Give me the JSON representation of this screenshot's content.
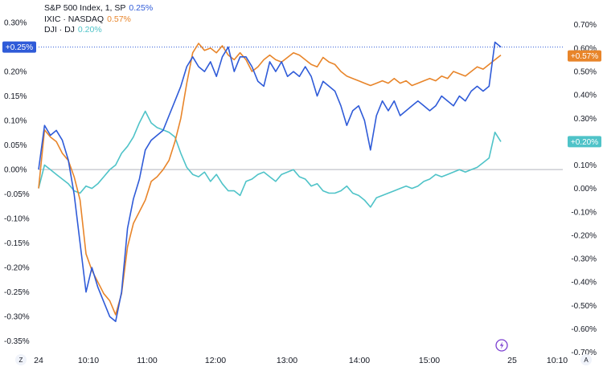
{
  "legend": [
    {
      "label": "S&P 500 Index, 1, SP",
      "value": "0.25%",
      "color": "#2f5bd8"
    },
    {
      "label": "IXIC · NASDAQ",
      "value": "0.57%",
      "color": "#e8852a"
    },
    {
      "label": "DJI · DJ",
      "value": "0.20%",
      "color": "#4fc3c8"
    }
  ],
  "badges": {
    "left": "+0.25%",
    "right_top": "+0.57%",
    "right_bottom": "+0.20%"
  },
  "axis_corners": {
    "left": "Z",
    "right": "A"
  },
  "colors": {
    "spx": "#2f5bd8",
    "ixic": "#e8852a",
    "dji": "#4fc3c8",
    "grid_zero": "#b2b5be",
    "tv_purple": "#7b3fd1"
  },
  "icons": {
    "lightning": "lightning-icon"
  },
  "chart_data": {
    "type": "line",
    "title": "",
    "x_ticks": [
      "24",
      "10:10",
      "11:00",
      "12:00",
      "13:00",
      "14:00",
      "15:00",
      "25",
      "10:10"
    ],
    "left_axis": {
      "ylim": [
        -0.375,
        0.31
      ],
      "ticks": [
        0.3,
        0.25,
        0.2,
        0.15,
        0.1,
        0.05,
        0.0,
        -0.05,
        -0.1,
        -0.15,
        -0.2,
        -0.25,
        -0.3,
        -0.35
      ],
      "tick_labels": [
        "0.30%",
        "0.25%",
        "0.20%",
        "0.15%",
        "0.10%",
        "0.05%",
        "0.00%",
        "-0.05%",
        "-0.10%",
        "-0.15%",
        "-0.20%",
        "-0.25%",
        "-0.30%",
        "-0.35%"
      ]
    },
    "right_axis": {
      "ylim": [
        -0.705,
        0.73
      ],
      "ticks": [
        0.7,
        0.6,
        0.5,
        0.4,
        0.3,
        0.2,
        0.1,
        0.0,
        -0.1,
        -0.2,
        -0.3,
        -0.4,
        -0.5,
        -0.6,
        -0.7
      ],
      "tick_labels": [
        "0.70%",
        "0.60%",
        "0.50%",
        "0.40%",
        "0.30%",
        "0.20%",
        "0.10%",
        "0.00%",
        "-0.10%",
        "-0.20%",
        "-0.30%",
        "-0.40%",
        "-0.50%",
        "-0.60%",
        "-0.70%"
      ]
    },
    "x_minutes": [
      0,
      5,
      10,
      15,
      20,
      25,
      30,
      35,
      40,
      45,
      50,
      55,
      60,
      65,
      70,
      75,
      80,
      85,
      90,
      95,
      100,
      105,
      110,
      115,
      120,
      125,
      130,
      135,
      140,
      145,
      150,
      155,
      160,
      165,
      170,
      175,
      180,
      185,
      190,
      195,
      200,
      205,
      210,
      215,
      220,
      225,
      230,
      235,
      240,
      245,
      250,
      255,
      260,
      265,
      270,
      275,
      280,
      285,
      290,
      295,
      300,
      305,
      310,
      315,
      320,
      325,
      330,
      335,
      340,
      345,
      350,
      355,
      360,
      365,
      370,
      375,
      380,
      385,
      390
    ],
    "series": [
      {
        "name": "S&P 500 Index, 1, SP",
        "axis": "left",
        "values": [
          0.0,
          0.09,
          0.07,
          0.08,
          0.06,
          0.02,
          -0.05,
          -0.15,
          -0.25,
          -0.2,
          -0.24,
          -0.27,
          -0.3,
          -0.31,
          -0.25,
          -0.12,
          -0.06,
          -0.02,
          0.04,
          0.06,
          0.07,
          0.08,
          0.11,
          0.14,
          0.17,
          0.21,
          0.23,
          0.21,
          0.2,
          0.22,
          0.19,
          0.23,
          0.25,
          0.2,
          0.23,
          0.23,
          0.21,
          0.18,
          0.17,
          0.22,
          0.2,
          0.22,
          0.19,
          0.2,
          0.19,
          0.21,
          0.19,
          0.15,
          0.18,
          0.17,
          0.16,
          0.13,
          0.09,
          0.12,
          0.13,
          0.1,
          0.04,
          0.11,
          0.14,
          0.12,
          0.14,
          0.11,
          0.12,
          0.13,
          0.14,
          0.13,
          0.12,
          0.13,
          0.15,
          0.14,
          0.13,
          0.15,
          0.14,
          0.16,
          0.17,
          0.16,
          0.17,
          0.26,
          0.25
        ]
      },
      {
        "name": "IXIC · NASDAQ",
        "axis": "right",
        "values": [
          0.0,
          0.25,
          0.22,
          0.2,
          0.15,
          0.12,
          0.05,
          -0.05,
          -0.28,
          -0.35,
          -0.4,
          -0.45,
          -0.48,
          -0.54,
          -0.45,
          -0.25,
          -0.15,
          -0.1,
          -0.05,
          0.03,
          0.05,
          0.08,
          0.12,
          0.2,
          0.3,
          0.45,
          0.58,
          0.62,
          0.59,
          0.6,
          0.58,
          0.61,
          0.57,
          0.55,
          0.58,
          0.55,
          0.5,
          0.52,
          0.55,
          0.57,
          0.55,
          0.54,
          0.56,
          0.58,
          0.57,
          0.55,
          0.53,
          0.52,
          0.56,
          0.54,
          0.53,
          0.5,
          0.48,
          0.47,
          0.46,
          0.45,
          0.44,
          0.45,
          0.46,
          0.45,
          0.47,
          0.45,
          0.46,
          0.44,
          0.45,
          0.46,
          0.47,
          0.46,
          0.48,
          0.47,
          0.5,
          0.49,
          0.48,
          0.5,
          0.52,
          0.51,
          0.53,
          0.55,
          0.57
        ]
      },
      {
        "name": "DJI · DJ",
        "axis": "right",
        "values": [
          0.0,
          0.1,
          0.08,
          0.06,
          0.04,
          0.02,
          -0.01,
          -0.02,
          0.01,
          0.0,
          0.02,
          0.05,
          0.08,
          0.1,
          0.15,
          0.18,
          0.22,
          0.28,
          0.33,
          0.28,
          0.26,
          0.25,
          0.24,
          0.22,
          0.15,
          0.09,
          0.06,
          0.05,
          0.07,
          0.03,
          0.06,
          0.02,
          -0.01,
          -0.01,
          -0.03,
          0.03,
          0.04,
          0.06,
          0.07,
          0.05,
          0.03,
          0.06,
          0.07,
          0.08,
          0.05,
          0.04,
          0.01,
          0.02,
          -0.01,
          -0.02,
          -0.02,
          -0.01,
          0.01,
          -0.02,
          -0.03,
          -0.05,
          -0.08,
          -0.04,
          -0.03,
          -0.02,
          -0.01,
          0.0,
          0.01,
          0.0,
          0.01,
          0.03,
          0.04,
          0.06,
          0.05,
          0.06,
          0.07,
          0.08,
          0.07,
          0.08,
          0.09,
          0.11,
          0.13,
          0.24,
          0.2
        ]
      }
    ],
    "grid": false,
    "legend_position": "top-left"
  }
}
